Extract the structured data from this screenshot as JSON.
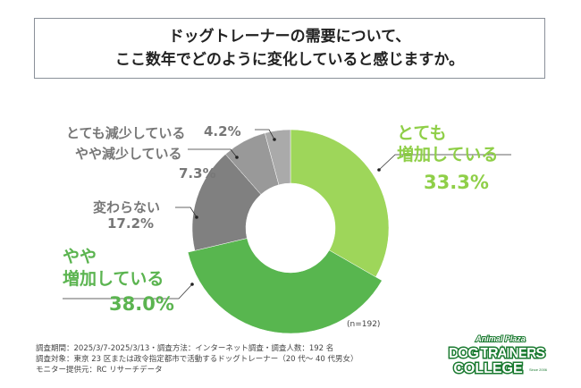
{
  "title": {
    "line1": "ドッグトレーナーの需要について、",
    "line2": "ここ数年でどのように変化していると感じますか。"
  },
  "chart_data": {
    "type": "pie",
    "donut": true,
    "categories": [
      "とても増加している",
      "やや増加している",
      "変わらない",
      "やや減少している",
      "とても減少している"
    ],
    "values": [
      33.3,
      38.0,
      17.2,
      7.3,
      4.2
    ],
    "unit": "%",
    "colors": [
      "#9ed65a",
      "#58b64f",
      "#808080",
      "#999999",
      "#aaaaaa"
    ],
    "exploded": "やや増加している",
    "sample": "(n=192)"
  },
  "labels": {
    "very_up": {
      "l1": "とても",
      "l2": "増加している",
      "pct": "33.3%"
    },
    "some_up": {
      "l1": "やや",
      "l2": "増加している",
      "pct": "38.0%"
    },
    "same": {
      "l1": "変わらない",
      "pct": "17.2%"
    },
    "some_down": {
      "l1": "やや減少している",
      "pct": "7.3%"
    },
    "very_down": {
      "l1": "とても減少している",
      "pct": "4.2%"
    }
  },
  "notes": [
    "調査期間：2025/3/7-2025/3/13・調査方法：インターネット調査・調査人数：192 名",
    "調査対象：東京 23 区または政令指定都市で活動するドッグトレーナー（20 代～ 40 代男女）",
    "モニター提供元：RC リサーチデータ"
  ],
  "logo": {
    "top": "Animal Plaza",
    "main1": "DOG TRAINERS",
    "main2": "COLLEGE",
    "since": "Since 2006"
  }
}
